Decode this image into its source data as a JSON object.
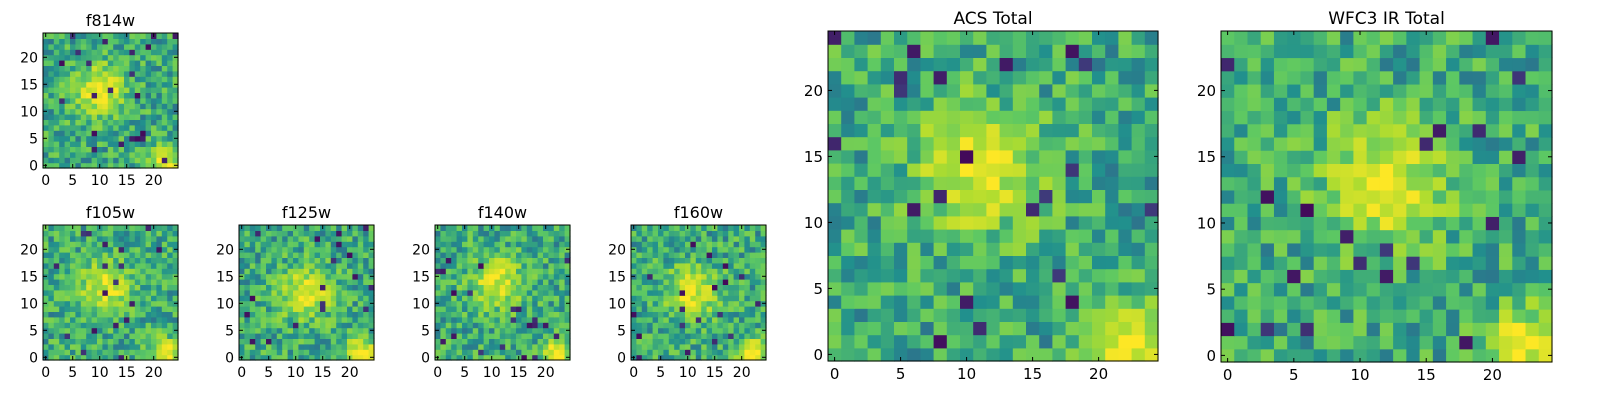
{
  "figure": {
    "palette": [
      "#440154",
      "#3b528b",
      "#21908d",
      "#5dc863",
      "#addc30",
      "#fde725"
    ]
  },
  "chart_data": [
    {
      "id": "f814w",
      "type": "heatmap",
      "title": "f814w",
      "grid": [
        25,
        25
      ],
      "xlim": [
        0,
        24
      ],
      "ylim": [
        0,
        24
      ],
      "xticks": [
        0,
        5,
        10,
        15,
        20
      ],
      "yticks": [
        0,
        5,
        10,
        15,
        20
      ],
      "bright_spots": [
        {
          "x": 10,
          "y": 14
        },
        {
          "x": 22,
          "y": 1
        }
      ]
    },
    {
      "id": "f105w",
      "type": "heatmap",
      "title": "f105w",
      "grid": [
        25,
        25
      ],
      "xlim": [
        0,
        24
      ],
      "ylim": [
        0,
        24
      ],
      "xticks": [
        0,
        5,
        10,
        15,
        20
      ],
      "yticks": [
        0,
        5,
        10,
        15,
        20
      ],
      "bright_spots": [
        {
          "x": 11,
          "y": 13
        },
        {
          "x": 22,
          "y": 1
        }
      ]
    },
    {
      "id": "f125w",
      "type": "heatmap",
      "title": "f125w",
      "grid": [
        25,
        25
      ],
      "xlim": [
        0,
        24
      ],
      "ylim": [
        0,
        24
      ],
      "xticks": [
        0,
        5,
        10,
        15,
        20
      ],
      "yticks": [
        0,
        5,
        10,
        15,
        20
      ],
      "bright_spots": [
        {
          "x": 12,
          "y": 12
        },
        {
          "x": 22,
          "y": 1
        }
      ]
    },
    {
      "id": "f140w",
      "type": "heatmap",
      "title": "f140w",
      "grid": [
        25,
        25
      ],
      "xlim": [
        0,
        24
      ],
      "ylim": [
        0,
        24
      ],
      "xticks": [
        0,
        5,
        10,
        15,
        20
      ],
      "yticks": [
        0,
        5,
        10,
        15,
        20
      ],
      "bright_spots": [
        {
          "x": 11,
          "y": 14
        },
        {
          "x": 22,
          "y": 1
        }
      ]
    },
    {
      "id": "f160w",
      "type": "heatmap",
      "title": "f160w",
      "grid": [
        25,
        25
      ],
      "xlim": [
        0,
        24
      ],
      "ylim": [
        0,
        24
      ],
      "xticks": [
        0,
        5,
        10,
        15,
        20
      ],
      "yticks": [
        0,
        5,
        10,
        15,
        20
      ],
      "bright_spots": [
        {
          "x": 11,
          "y": 12
        },
        {
          "x": 22,
          "y": 1
        }
      ]
    },
    {
      "id": "acs_total",
      "type": "heatmap",
      "title": "ACS Total",
      "grid": [
        25,
        25
      ],
      "xlim": [
        0,
        24
      ],
      "ylim": [
        0,
        24
      ],
      "xticks": [
        0,
        5,
        10,
        15,
        20
      ],
      "yticks": [
        0,
        5,
        10,
        15,
        20
      ],
      "bright_spots": [
        {
          "x": 11,
          "y": 14
        },
        {
          "x": 22,
          "y": 1
        }
      ]
    },
    {
      "id": "wfc3_ir_total",
      "type": "heatmap",
      "title": "WFC3 IR Total",
      "grid": [
        25,
        25
      ],
      "xlim": [
        0,
        24
      ],
      "ylim": [
        0,
        24
      ],
      "xticks": [
        0,
        5,
        10,
        15,
        20
      ],
      "yticks": [
        0,
        5,
        10,
        15,
        20
      ],
      "bright_spots": [
        {
          "x": 12,
          "y": 13
        },
        {
          "x": 22,
          "y": 1
        }
      ]
    }
  ]
}
